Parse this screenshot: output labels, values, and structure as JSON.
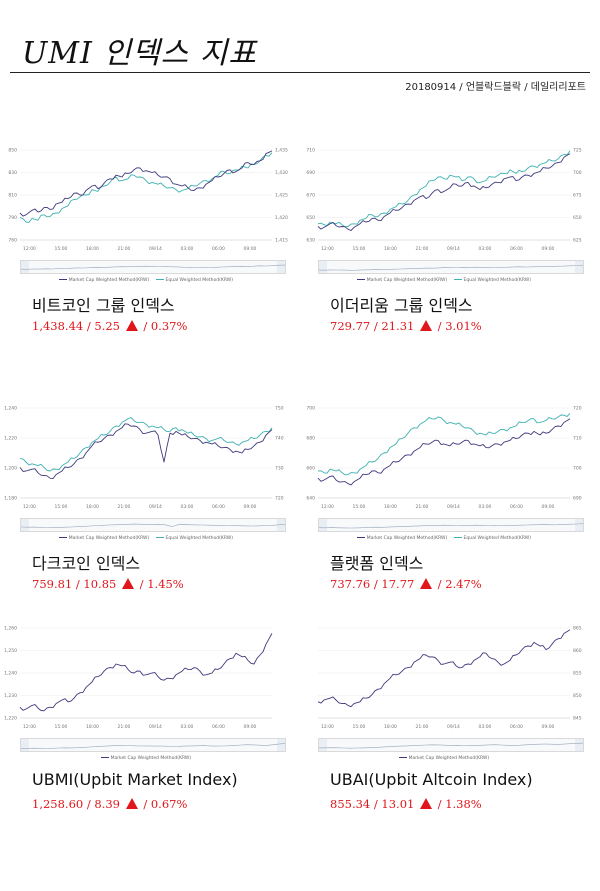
{
  "header": {
    "title": "UMI 인덱스 지표",
    "byline": "20180914 / 언블락드블락 / 데일리리포트"
  },
  "legend": {
    "series_1": "Market Cap Weighted Method(KRW)",
    "series_2": "Equal Weighted Method(KRW)"
  },
  "colors": {
    "series_1": "#3f3a7d",
    "series_2": "#3fb1b1",
    "change": "#e0161a"
  },
  "cards": [
    {
      "name": "비트코인 그룹 인덱스",
      "value": "1,438.44 / 5.25",
      "pct": "/ 0.37%"
    },
    {
      "name": "이더리움 그룹 인덱스",
      "value": "729.77 / 21.31",
      "pct": "/ 3.01%"
    },
    {
      "name": "다크코인 인덱스",
      "value": "759.81 / 10.85",
      "pct": "/ 1.45%"
    },
    {
      "name": "플랫폼 인덱스",
      "value": "737.76 / 17.77",
      "pct": "/ 2.47%"
    },
    {
      "name": "UBMI(Upbit Market Index)",
      "value": "1,258.60 / 8.39",
      "pct": "/ 0.67%"
    },
    {
      "name": "UBAI(Upbit Altcoin Index)",
      "value": "855.34 / 13.01",
      "pct": "/ 1.38%"
    }
  ],
  "chart_data": [
    {
      "type": "line",
      "x_ticks": [
        "12:00",
        "15:00",
        "18:00",
        "21:00",
        "09/14",
        "03:00",
        "06:00",
        "09:00"
      ],
      "y_ticks_left": [
        "760",
        "790",
        "810",
        "830",
        "850"
      ],
      "y_ticks_right": [
        "1,415",
        "1,420",
        "1,425",
        "1,430",
        "1,435"
      ],
      "series": [
        {
          "name": "Market Cap Weighted Method(KRW)",
          "values": [
            0.3,
            0.28,
            0.33,
            0.31,
            0.36,
            0.34,
            0.4,
            0.42,
            0.46,
            0.52,
            0.5,
            0.55,
            0.6,
            0.57,
            0.63,
            0.68,
            0.72,
            0.7,
            0.74,
            0.78,
            0.8,
            0.77,
            0.75,
            0.72,
            0.7,
            0.68,
            0.62,
            0.6,
            0.58,
            0.55,
            0.58,
            0.62,
            0.66,
            0.7,
            0.74,
            0.78,
            0.76,
            0.8,
            0.86,
            0.84,
            0.88,
            0.96,
            0.99
          ]
        },
        {
          "name": "Equal Weighted Method(KRW)",
          "values": [
            0.25,
            0.2,
            0.24,
            0.22,
            0.28,
            0.26,
            0.3,
            0.35,
            0.38,
            0.45,
            0.48,
            0.5,
            0.56,
            0.54,
            0.6,
            0.64,
            0.7,
            0.66,
            0.68,
            0.72,
            0.7,
            0.66,
            0.64,
            0.62,
            0.6,
            0.58,
            0.56,
            0.55,
            0.57,
            0.6,
            0.63,
            0.66,
            0.68,
            0.72,
            0.76,
            0.74,
            0.78,
            0.82,
            0.8,
            0.84,
            0.88,
            0.94,
            0.97
          ]
        }
      ]
    },
    {
      "type": "line",
      "x_ticks": [
        "12:00",
        "15:00",
        "18:00",
        "21:00",
        "09/14",
        "03:00",
        "06:00",
        "09:00"
      ],
      "y_ticks_left": [
        "630",
        "650",
        "670",
        "690",
        "710"
      ],
      "y_ticks_right": [
        "625",
        "650",
        "675",
        "700",
        "725"
      ],
      "series": [
        {
          "name": "Market Cap Weighted Method(KRW)",
          "values": [
            0.15,
            0.14,
            0.18,
            0.16,
            0.15,
            0.12,
            0.14,
            0.18,
            0.2,
            0.24,
            0.22,
            0.26,
            0.3,
            0.33,
            0.36,
            0.4,
            0.44,
            0.48,
            0.46,
            0.52,
            0.56,
            0.54,
            0.58,
            0.62,
            0.6,
            0.64,
            0.6,
            0.56,
            0.58,
            0.62,
            0.64,
            0.68,
            0.7,
            0.66,
            0.7,
            0.72,
            0.74,
            0.76,
            0.8,
            0.82,
            0.86,
            0.92,
            0.96
          ]
        },
        {
          "name": "Equal Weighted Method(KRW)",
          "values": [
            0.18,
            0.17,
            0.2,
            0.18,
            0.17,
            0.15,
            0.18,
            0.22,
            0.24,
            0.28,
            0.26,
            0.3,
            0.34,
            0.37,
            0.4,
            0.44,
            0.5,
            0.56,
            0.6,
            0.66,
            0.7,
            0.68,
            0.72,
            0.7,
            0.66,
            0.7,
            0.68,
            0.64,
            0.66,
            0.7,
            0.72,
            0.74,
            0.78,
            0.74,
            0.76,
            0.8,
            0.82,
            0.84,
            0.86,
            0.88,
            0.9,
            0.95,
            0.99
          ]
        }
      ]
    },
    {
      "type": "line",
      "x_ticks": [
        "12:00",
        "15:00",
        "18:00",
        "21:00",
        "09/14",
        "03:00",
        "06:00",
        "09:00"
      ],
      "y_ticks_left": [
        "1,180",
        "1,200",
        "1,220",
        "1,240"
      ],
      "y_ticks_right": [
        "720",
        "730",
        "740",
        "750"
      ],
      "series": [
        {
          "name": "Market Cap Weighted Method(KRW)",
          "values": [
            0.34,
            0.3,
            0.32,
            0.28,
            0.25,
            0.22,
            0.26,
            0.3,
            0.34,
            0.38,
            0.44,
            0.5,
            0.58,
            0.62,
            0.66,
            0.7,
            0.74,
            0.78,
            0.82,
            0.8,
            0.76,
            0.72,
            0.74,
            0.7,
            0.4,
            0.72,
            0.74,
            0.7,
            0.68,
            0.66,
            0.64,
            0.62,
            0.6,
            0.58,
            0.56,
            0.54,
            0.52,
            0.5,
            0.54,
            0.58,
            0.62,
            0.7,
            0.76
          ]
        },
        {
          "name": "Equal Weighted Method(KRW)",
          "values": [
            0.44,
            0.4,
            0.38,
            0.36,
            0.34,
            0.3,
            0.32,
            0.36,
            0.4,
            0.44,
            0.5,
            0.56,
            0.62,
            0.66,
            0.7,
            0.74,
            0.8,
            0.84,
            0.88,
            0.86,
            0.84,
            0.82,
            0.8,
            0.78,
            0.76,
            0.74,
            0.78,
            0.76,
            0.72,
            0.7,
            0.68,
            0.66,
            0.64,
            0.66,
            0.64,
            0.62,
            0.6,
            0.62,
            0.64,
            0.66,
            0.7,
            0.74,
            0.78
          ]
        }
      ]
    },
    {
      "type": "line",
      "x_ticks": [
        "12:00",
        "15:00",
        "18:00",
        "21:00",
        "09/14",
        "03:00",
        "06:00",
        "09:00"
      ],
      "y_ticks_left": [
        "640",
        "660",
        "680",
        "700"
      ],
      "y_ticks_right": [
        "690",
        "700",
        "710",
        "720",
        "730"
      ],
      "series": [
        {
          "name": "Market Cap Weighted Method(KRW)",
          "values": [
            0.22,
            0.2,
            0.24,
            0.2,
            0.18,
            0.16,
            0.18,
            0.22,
            0.26,
            0.3,
            0.28,
            0.32,
            0.36,
            0.4,
            0.44,
            0.48,
            0.52,
            0.56,
            0.6,
            0.62,
            0.64,
            0.6,
            0.58,
            0.6,
            0.62,
            0.64,
            0.6,
            0.58,
            0.56,
            0.58,
            0.6,
            0.62,
            0.64,
            0.66,
            0.7,
            0.72,
            0.74,
            0.7,
            0.72,
            0.76,
            0.8,
            0.84,
            0.88
          ]
        },
        {
          "name": "Equal Weighted Method(KRW)",
          "values": [
            0.3,
            0.28,
            0.32,
            0.3,
            0.28,
            0.26,
            0.28,
            0.32,
            0.36,
            0.4,
            0.44,
            0.5,
            0.56,
            0.6,
            0.66,
            0.72,
            0.78,
            0.82,
            0.86,
            0.88,
            0.9,
            0.86,
            0.84,
            0.82,
            0.8,
            0.78,
            0.74,
            0.72,
            0.7,
            0.72,
            0.74,
            0.76,
            0.78,
            0.8,
            0.84,
            0.86,
            0.88,
            0.84,
            0.86,
            0.88,
            0.9,
            0.92,
            0.94
          ]
        }
      ]
    },
    {
      "type": "line",
      "x_ticks": [
        "12:00",
        "15:00",
        "18:00",
        "21:00",
        "09/14",
        "03:00",
        "06:00",
        "09:00"
      ],
      "y_ticks_left": [
        "1,220",
        "1,230",
        "1,240",
        "1,250",
        "1,260"
      ],
      "series": [
        {
          "name": "Market Cap Weighted Method(KRW)",
          "values": [
            0.12,
            0.1,
            0.14,
            0.11,
            0.08,
            0.12,
            0.16,
            0.2,
            0.18,
            0.22,
            0.28,
            0.34,
            0.4,
            0.46,
            0.52,
            0.56,
            0.6,
            0.58,
            0.54,
            0.5,
            0.52,
            0.48,
            0.5,
            0.46,
            0.42,
            0.44,
            0.48,
            0.52,
            0.54,
            0.56,
            0.52,
            0.48,
            0.5,
            0.54,
            0.6,
            0.66,
            0.72,
            0.68,
            0.64,
            0.6,
            0.7,
            0.82,
            0.94
          ]
        }
      ]
    },
    {
      "type": "line",
      "x_ticks": [
        "12:00",
        "15:00",
        "18:00",
        "21:00",
        "09/14",
        "03:00",
        "06:00",
        "09:00"
      ],
      "y_ticks_right": [
        "845",
        "850",
        "855",
        "860",
        "865"
      ],
      "series": [
        {
          "name": "Market Cap Weighted Method(KRW)",
          "values": [
            0.18,
            0.2,
            0.22,
            0.2,
            0.16,
            0.14,
            0.16,
            0.18,
            0.22,
            0.26,
            0.32,
            0.38,
            0.44,
            0.48,
            0.52,
            0.56,
            0.62,
            0.66,
            0.7,
            0.68,
            0.64,
            0.6,
            0.62,
            0.58,
            0.56,
            0.6,
            0.64,
            0.68,
            0.72,
            0.66,
            0.62,
            0.6,
            0.64,
            0.7,
            0.76,
            0.8,
            0.84,
            0.8,
            0.76,
            0.82,
            0.88,
            0.94,
            0.98
          ]
        }
      ]
    }
  ]
}
